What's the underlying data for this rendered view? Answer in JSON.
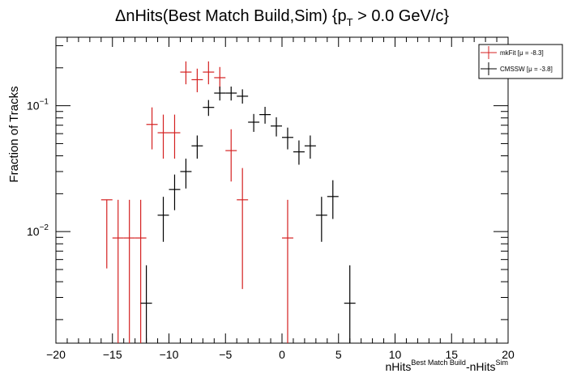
{
  "chart_data": {
    "type": "scatter",
    "title": "ΔnHits(Best Match Build,Sim) {p_T > 0.0 GeV/c}",
    "title_parts": {
      "main": "ΔnHits(Best Match Build,Sim) {p",
      "sub": "T",
      "tail": " > 0.0 GeV/c}"
    },
    "xlabel": "nHits^{Best Match Build}-nHits^{Sim}",
    "xlabel_parts": {
      "a": "nHits",
      "sup1": "Best Match Build",
      "b": "-nHits",
      "sup2": "Sim"
    },
    "ylabel": "Fraction of Tracks",
    "xlim": [
      -20,
      20
    ],
    "ylim": [
      0.0013,
      0.35
    ],
    "yscale": "log",
    "x_ticks": [
      "−20",
      "−15",
      "−10",
      "−5",
      "0",
      "5",
      "10",
      "15",
      "20"
    ],
    "x_tick_values": [
      -20,
      -15,
      -10,
      -5,
      0,
      5,
      10,
      15,
      20
    ],
    "y_ticks": [
      {
        "value": 0.1,
        "base": "10",
        "exp": "−1"
      },
      {
        "value": 0.01,
        "base": "10",
        "exp": "−2"
      }
    ],
    "legend_placement": "top-right",
    "series": [
      {
        "name": "mkFit  [μ = -8.3]",
        "color": "#d42020",
        "points": [
          {
            "x": -15.5,
            "y": 0.0179,
            "lo": 0.0051,
            "hi": 0.0179
          },
          {
            "x": -14.5,
            "y": 0.0089,
            "lo": 0.0013,
            "hi": 0.0179
          },
          {
            "x": -13.5,
            "y": 0.0089,
            "lo": 0.0013,
            "hi": 0.0179
          },
          {
            "x": -12.5,
            "y": 0.0089,
            "lo": 0.0013,
            "hi": 0.0179
          },
          {
            "x": -11.5,
            "y": 0.071,
            "lo": 0.045,
            "hi": 0.097
          },
          {
            "x": -10.5,
            "y": 0.061,
            "lo": 0.038,
            "hi": 0.085
          },
          {
            "x": -9.5,
            "y": 0.061,
            "lo": 0.038,
            "hi": 0.085
          },
          {
            "x": -8.5,
            "y": 0.185,
            "lo": 0.148,
            "hi": 0.225
          },
          {
            "x": -7.5,
            "y": 0.161,
            "lo": 0.128,
            "hi": 0.197
          },
          {
            "x": -6.5,
            "y": 0.185,
            "lo": 0.148,
            "hi": 0.225
          },
          {
            "x": -5.5,
            "y": 0.167,
            "lo": 0.133,
            "hi": 0.203
          },
          {
            "x": -4.5,
            "y": 0.044,
            "lo": 0.025,
            "hi": 0.065
          },
          {
            "x": -3.5,
            "y": 0.0179,
            "lo": 0.0035,
            "hi": 0.032
          },
          {
            "x": 0.5,
            "y": 0.0089,
            "lo": 0.0013,
            "hi": 0.0179
          }
        ]
      },
      {
        "name": "CMSSW  [μ = -3.8]",
        "color": "#000000",
        "points": [
          {
            "x": -12.0,
            "y": 0.0027,
            "lo": 0.0013,
            "hi": 0.0054,
            "xlo": -12.5,
            "xhi": -11.5
          },
          {
            "x": -10.5,
            "y": 0.0135,
            "lo": 0.0083,
            "hi": 0.0189
          },
          {
            "x": -9.5,
            "y": 0.0216,
            "lo": 0.0148,
            "hi": 0.0284
          },
          {
            "x": -8.5,
            "y": 0.03,
            "lo": 0.022,
            "hi": 0.038
          },
          {
            "x": -7.5,
            "y": 0.048,
            "lo": 0.038,
            "hi": 0.058
          },
          {
            "x": -6.5,
            "y": 0.097,
            "lo": 0.083,
            "hi": 0.111
          },
          {
            "x": -5.5,
            "y": 0.126,
            "lo": 0.11,
            "hi": 0.142
          },
          {
            "x": -4.5,
            "y": 0.126,
            "lo": 0.11,
            "hi": 0.142
          },
          {
            "x": -3.5,
            "y": 0.119,
            "lo": 0.104,
            "hi": 0.135
          },
          {
            "x": -2.5,
            "y": 0.074,
            "lo": 0.062,
            "hi": 0.086
          },
          {
            "x": -1.5,
            "y": 0.085,
            "lo": 0.072,
            "hi": 0.098
          },
          {
            "x": -0.5,
            "y": 0.069,
            "lo": 0.057,
            "hi": 0.081
          },
          {
            "x": 0.5,
            "y": 0.056,
            "lo": 0.045,
            "hi": 0.067
          },
          {
            "x": 1.5,
            "y": 0.043,
            "lo": 0.034,
            "hi": 0.053
          },
          {
            "x": 2.5,
            "y": 0.048,
            "lo": 0.038,
            "hi": 0.058
          },
          {
            "x": 3.5,
            "y": 0.0135,
            "lo": 0.0083,
            "hi": 0.0189
          },
          {
            "x": 4.5,
            "y": 0.019,
            "lo": 0.0126,
            "hi": 0.0256
          },
          {
            "x": 6.0,
            "y": 0.0027,
            "lo": 0.0013,
            "hi": 0.0054,
            "xlo": 5.5,
            "xhi": 6.5
          }
        ]
      }
    ]
  }
}
